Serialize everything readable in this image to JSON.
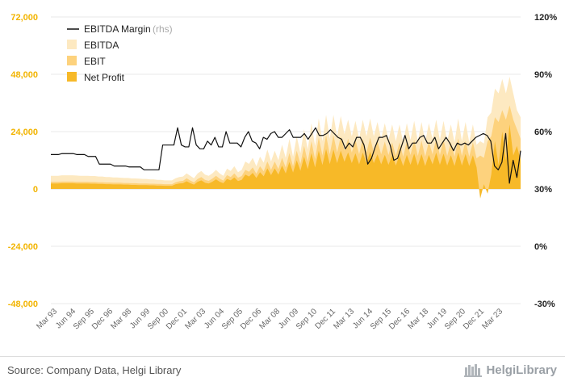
{
  "chart_data": {
    "type": "area",
    "title": "",
    "legend_position": "top-left",
    "x_labels": [
      "Mar 93",
      "Jun 94",
      "Sep 95",
      "Dec 96",
      "Mar 98",
      "Jun 99",
      "Sep 00",
      "Dec 01",
      "Mar 03",
      "Jun 04",
      "Sep 05",
      "Dec 06",
      "Mar 08",
      "Jun 09",
      "Sep 10",
      "Dec 11",
      "Mar 13",
      "Jun 14",
      "Sep 15",
      "Dec 16",
      "Mar 18",
      "Jun 19",
      "Sep 20",
      "Dec 21",
      "Mar 23"
    ],
    "y_left": {
      "min": -48000,
      "max": 72000,
      "ticks": [
        -48000,
        -24000,
        0,
        24000,
        48000,
        72000
      ],
      "tick_labels": [
        "-48,000",
        "-24,000",
        "0",
        "24,000",
        "48,000",
        "72,000"
      ]
    },
    "y_right": {
      "min": -30,
      "max": 120,
      "ticks": [
        -30,
        0,
        30,
        60,
        90,
        120
      ],
      "tick_labels": [
        "-30%",
        "0%",
        "30%",
        "60%",
        "90%",
        "120%"
      ]
    },
    "legend": {
      "margin_label": "EBITDA Margin",
      "margin_note": "(rhs)",
      "ebitda_label": "EBITDA",
      "ebit_label": "EBIT",
      "net_label": "Net Profit"
    },
    "colors": {
      "ebitda": "#fde9c1",
      "ebit": "#fdd27d",
      "net": "#f7b928",
      "margin": "#111111",
      "left_axis": "#f2b400",
      "grid": "#e8e8e8"
    },
    "series": {
      "ebitda": [
        5500,
        5500,
        5500,
        5700,
        5700,
        5700,
        5700,
        5600,
        5500,
        5500,
        5500,
        5400,
        5400,
        5200,
        5200,
        5000,
        5000,
        4800,
        4800,
        4700,
        4600,
        4600,
        4400,
        4400,
        4300,
        4200,
        4200,
        4000,
        4000,
        3800,
        3800,
        3600,
        3600,
        3600,
        4500,
        5000,
        5200,
        6500,
        5500,
        4500,
        6500,
        7500,
        6000,
        5500,
        6500,
        8000,
        6500,
        5500,
        8500,
        7500,
        9500,
        7000,
        8000,
        11500,
        10500,
        13000,
        9500,
        13500,
        11000,
        16500,
        11500,
        16000,
        12000,
        18500,
        13000,
        21000,
        13500,
        22000,
        15000,
        25000,
        16500,
        27500,
        18000,
        29500,
        20000,
        31000,
        21000,
        31000,
        22000,
        30500,
        23000,
        29000,
        22000,
        28500,
        21000,
        29000,
        22000,
        29500,
        22000,
        28000,
        21000,
        27500,
        20500,
        27000,
        20000,
        27000,
        19500,
        27500,
        20500,
        28500,
        20000,
        28000,
        19500,
        27500,
        21000,
        29000,
        20500,
        28500,
        20000,
        27000,
        19500,
        29500,
        20000,
        28000,
        19500,
        27000,
        18500,
        20000,
        19000,
        30000,
        32000,
        42000,
        40000,
        46000,
        40000,
        47000,
        40000,
        33000,
        30000
      ],
      "ebit": [
        3000,
        3000,
        3000,
        3100,
        3100,
        3100,
        3100,
        3000,
        3000,
        3000,
        3000,
        2900,
        2900,
        2800,
        2800,
        2700,
        2700,
        2600,
        2600,
        2600,
        2500,
        2500,
        2400,
        2400,
        2300,
        2300,
        2300,
        2200,
        2200,
        2100,
        2100,
        2000,
        2000,
        2000,
        2800,
        3200,
        3400,
        4500,
        3500,
        2800,
        4200,
        5000,
        3800,
        3400,
        4300,
        5500,
        4300,
        3500,
        5800,
        5000,
        6500,
        4700,
        5400,
        8000,
        7200,
        9000,
        6400,
        9500,
        7400,
        11500,
        8000,
        11500,
        8300,
        13000,
        9000,
        15000,
        9500,
        16000,
        10500,
        18000,
        11500,
        20000,
        12500,
        21500,
        14000,
        22500,
        14500,
        22500,
        15200,
        22000,
        16000,
        21000,
        15200,
        20500,
        14500,
        21000,
        15200,
        21500,
        15200,
        20000,
        14500,
        19800,
        14200,
        19500,
        13800,
        19500,
        13500,
        19800,
        14200,
        20500,
        13800,
        20200,
        13500,
        19800,
        14500,
        21000,
        14200,
        20500,
        13800,
        19500,
        13500,
        21200,
        13800,
        20200,
        13500,
        19500,
        12800,
        14000,
        13000,
        20000,
        22000,
        30000,
        28000,
        33000,
        29000,
        35000,
        29000,
        25000,
        21000
      ],
      "net": [
        2300,
        2300,
        2300,
        2400,
        2400,
        2400,
        2400,
        2300,
        2300,
        2300,
        2300,
        2200,
        2200,
        2100,
        2100,
        2000,
        2000,
        1900,
        1900,
        1900,
        1800,
        1800,
        1700,
        1700,
        1600,
        1600,
        1600,
        1500,
        1500,
        1400,
        1400,
        1300,
        1300,
        1300,
        2000,
        2300,
        2400,
        3200,
        2400,
        1800,
        3000,
        3600,
        2600,
        2300,
        3000,
        4000,
        3000,
        2400,
        4200,
        3600,
        4800,
        3300,
        3800,
        6000,
        5200,
        6700,
        4600,
        7000,
        5300,
        8600,
        5800,
        8600,
        6000,
        9800,
        6500,
        11300,
        6900,
        12000,
        7600,
        13500,
        8300,
        15000,
        9000,
        16000,
        10000,
        16700,
        10400,
        16500,
        10800,
        16000,
        11400,
        15300,
        10800,
        14900,
        10300,
        15200,
        10800,
        15600,
        10800,
        14500,
        10300,
        14300,
        10100,
        14100,
        9800,
        14100,
        9600,
        14300,
        10100,
        14800,
        9800,
        14600,
        9600,
        14300,
        10300,
        15200,
        10100,
        14800,
        9800,
        14100,
        9600,
        15300,
        9800,
        14600,
        9600,
        14100,
        9100,
        -4000,
        2000,
        -2000,
        6000,
        20000,
        10000,
        24000,
        12000,
        27000,
        14000,
        18000,
        12000
      ],
      "margin": [
        48,
        48,
        48,
        48.5,
        48.5,
        48.5,
        48.5,
        48,
        48,
        48,
        47,
        47,
        47,
        43,
        43,
        43,
        43,
        42,
        42,
        42,
        42,
        41.5,
        41.5,
        41.5,
        41.5,
        40,
        40,
        40,
        40,
        40,
        53,
        53,
        53,
        53,
        62,
        53,
        52,
        52,
        62,
        53,
        51,
        51,
        55,
        53,
        57,
        52,
        52,
        60,
        54,
        54,
        54,
        52,
        57,
        60,
        55,
        54,
        51,
        57,
        56,
        59,
        60,
        57,
        57,
        59,
        61,
        57,
        57,
        57,
        59,
        56,
        59,
        62,
        58,
        58,
        59,
        61,
        59,
        57,
        56,
        51,
        54,
        52,
        57,
        57,
        53,
        43,
        46,
        52,
        57,
        57,
        58,
        53,
        45,
        46,
        52,
        58,
        51,
        54,
        54,
        57,
        58,
        54,
        54,
        57,
        51,
        54,
        57,
        54,
        50,
        54,
        53,
        54,
        53,
        55,
        57,
        58,
        59,
        58,
        55,
        42,
        40,
        44,
        59,
        33,
        45,
        36,
        50
      ],
      "margin_points_x": [
        0,
        1,
        2,
        3,
        4,
        5,
        6,
        7,
        8,
        9,
        10,
        11,
        12,
        13,
        14,
        15,
        16,
        17,
        18,
        19,
        20,
        21,
        22,
        23,
        24,
        25,
        26,
        27,
        28,
        29
      ]
    }
  },
  "footer": {
    "source": "Source: Company Data, Helgi Library",
    "brand": "HelgiLibrary"
  }
}
